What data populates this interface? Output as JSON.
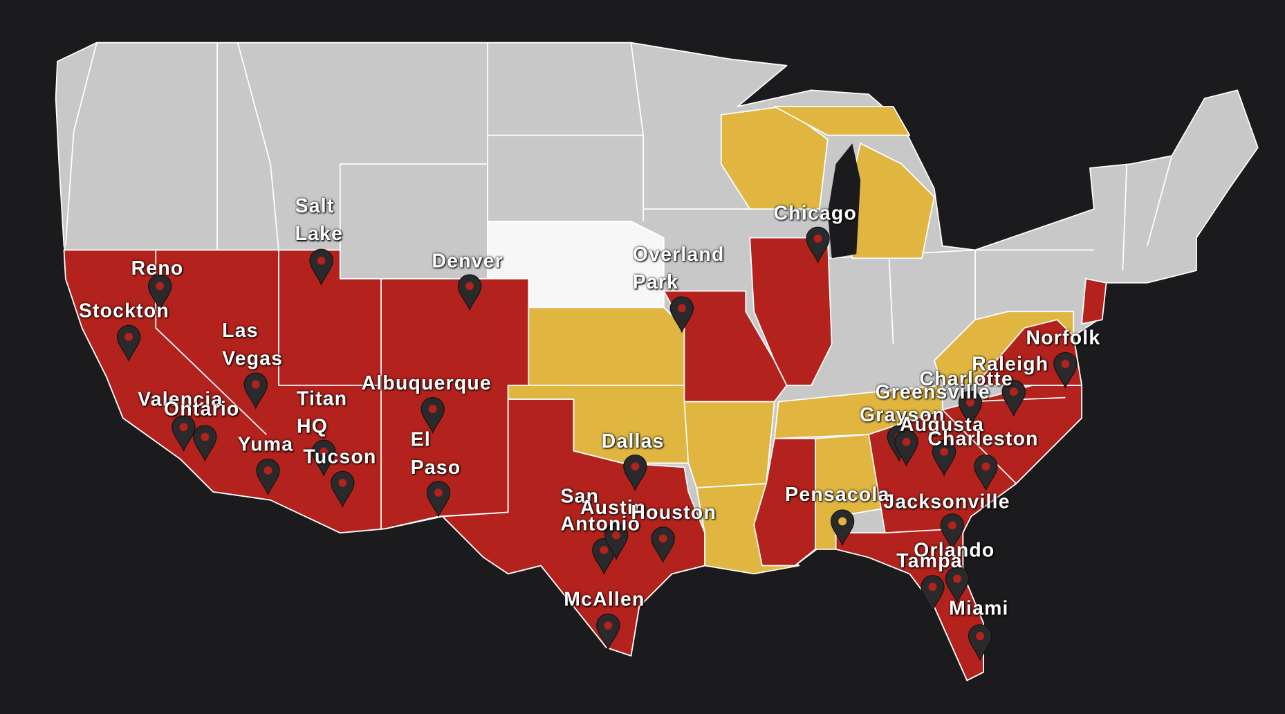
{
  "locations": [
    {
      "name": "Reno",
      "pin_color": "#b3221c"
    },
    {
      "name": "Stockton",
      "pin_color": "#b3221c"
    },
    {
      "name": "Salt Lake",
      "pin_color": "#b3221c"
    },
    {
      "name": "Denver",
      "pin_color": "#b3221c"
    },
    {
      "name": "Overland Park",
      "pin_color": "#b3221c"
    },
    {
      "name": "Chicago",
      "pin_color": "#b3221c"
    },
    {
      "name": "Las Vegas",
      "pin_color": "#b3221c"
    },
    {
      "name": "Valencia",
      "pin_color": "#b3221c"
    },
    {
      "name": "Ontario",
      "pin_color": "#b3221c"
    },
    {
      "name": "Yuma",
      "pin_color": "#b3221c"
    },
    {
      "name": "Titan HQ",
      "pin_color": "#b3221c"
    },
    {
      "name": "Tucson",
      "pin_color": "#b3221c"
    },
    {
      "name": "Albuquerque",
      "pin_color": "#b3221c"
    },
    {
      "name": "El Paso",
      "pin_color": "#b3221c"
    },
    {
      "name": "Dallas",
      "pin_color": "#b3221c"
    },
    {
      "name": "San Antonio",
      "pin_color": "#b3221c"
    },
    {
      "name": "Austin",
      "pin_color": "#b3221c"
    },
    {
      "name": "Houston",
      "pin_color": "#b3221c"
    },
    {
      "name": "McAllen",
      "pin_color": "#b3221c"
    },
    {
      "name": "Pensacola",
      "pin_color": "#e0b540"
    },
    {
      "name": "Norfolk",
      "pin_color": "#b3221c"
    },
    {
      "name": "Raleigh",
      "pin_color": "#b3221c"
    },
    {
      "name": "Charlotte",
      "pin_color": "#b3221c"
    },
    {
      "name": "Greensville",
      "pin_color": "#b3221c"
    },
    {
      "name": "Grayson",
      "pin_color": "#b3221c"
    },
    {
      "name": "Augusta",
      "pin_color": "#b3221c"
    },
    {
      "name": "Charleston",
      "pin_color": "#b3221c"
    },
    {
      "name": "Jacksonville",
      "pin_color": "#b3221c"
    },
    {
      "name": "Orlando",
      "pin_color": "#b3221c"
    },
    {
      "name": "Tampa",
      "pin_color": "#b3221c"
    },
    {
      "name": "Miami",
      "pin_color": "#b3221c"
    }
  ]
}
